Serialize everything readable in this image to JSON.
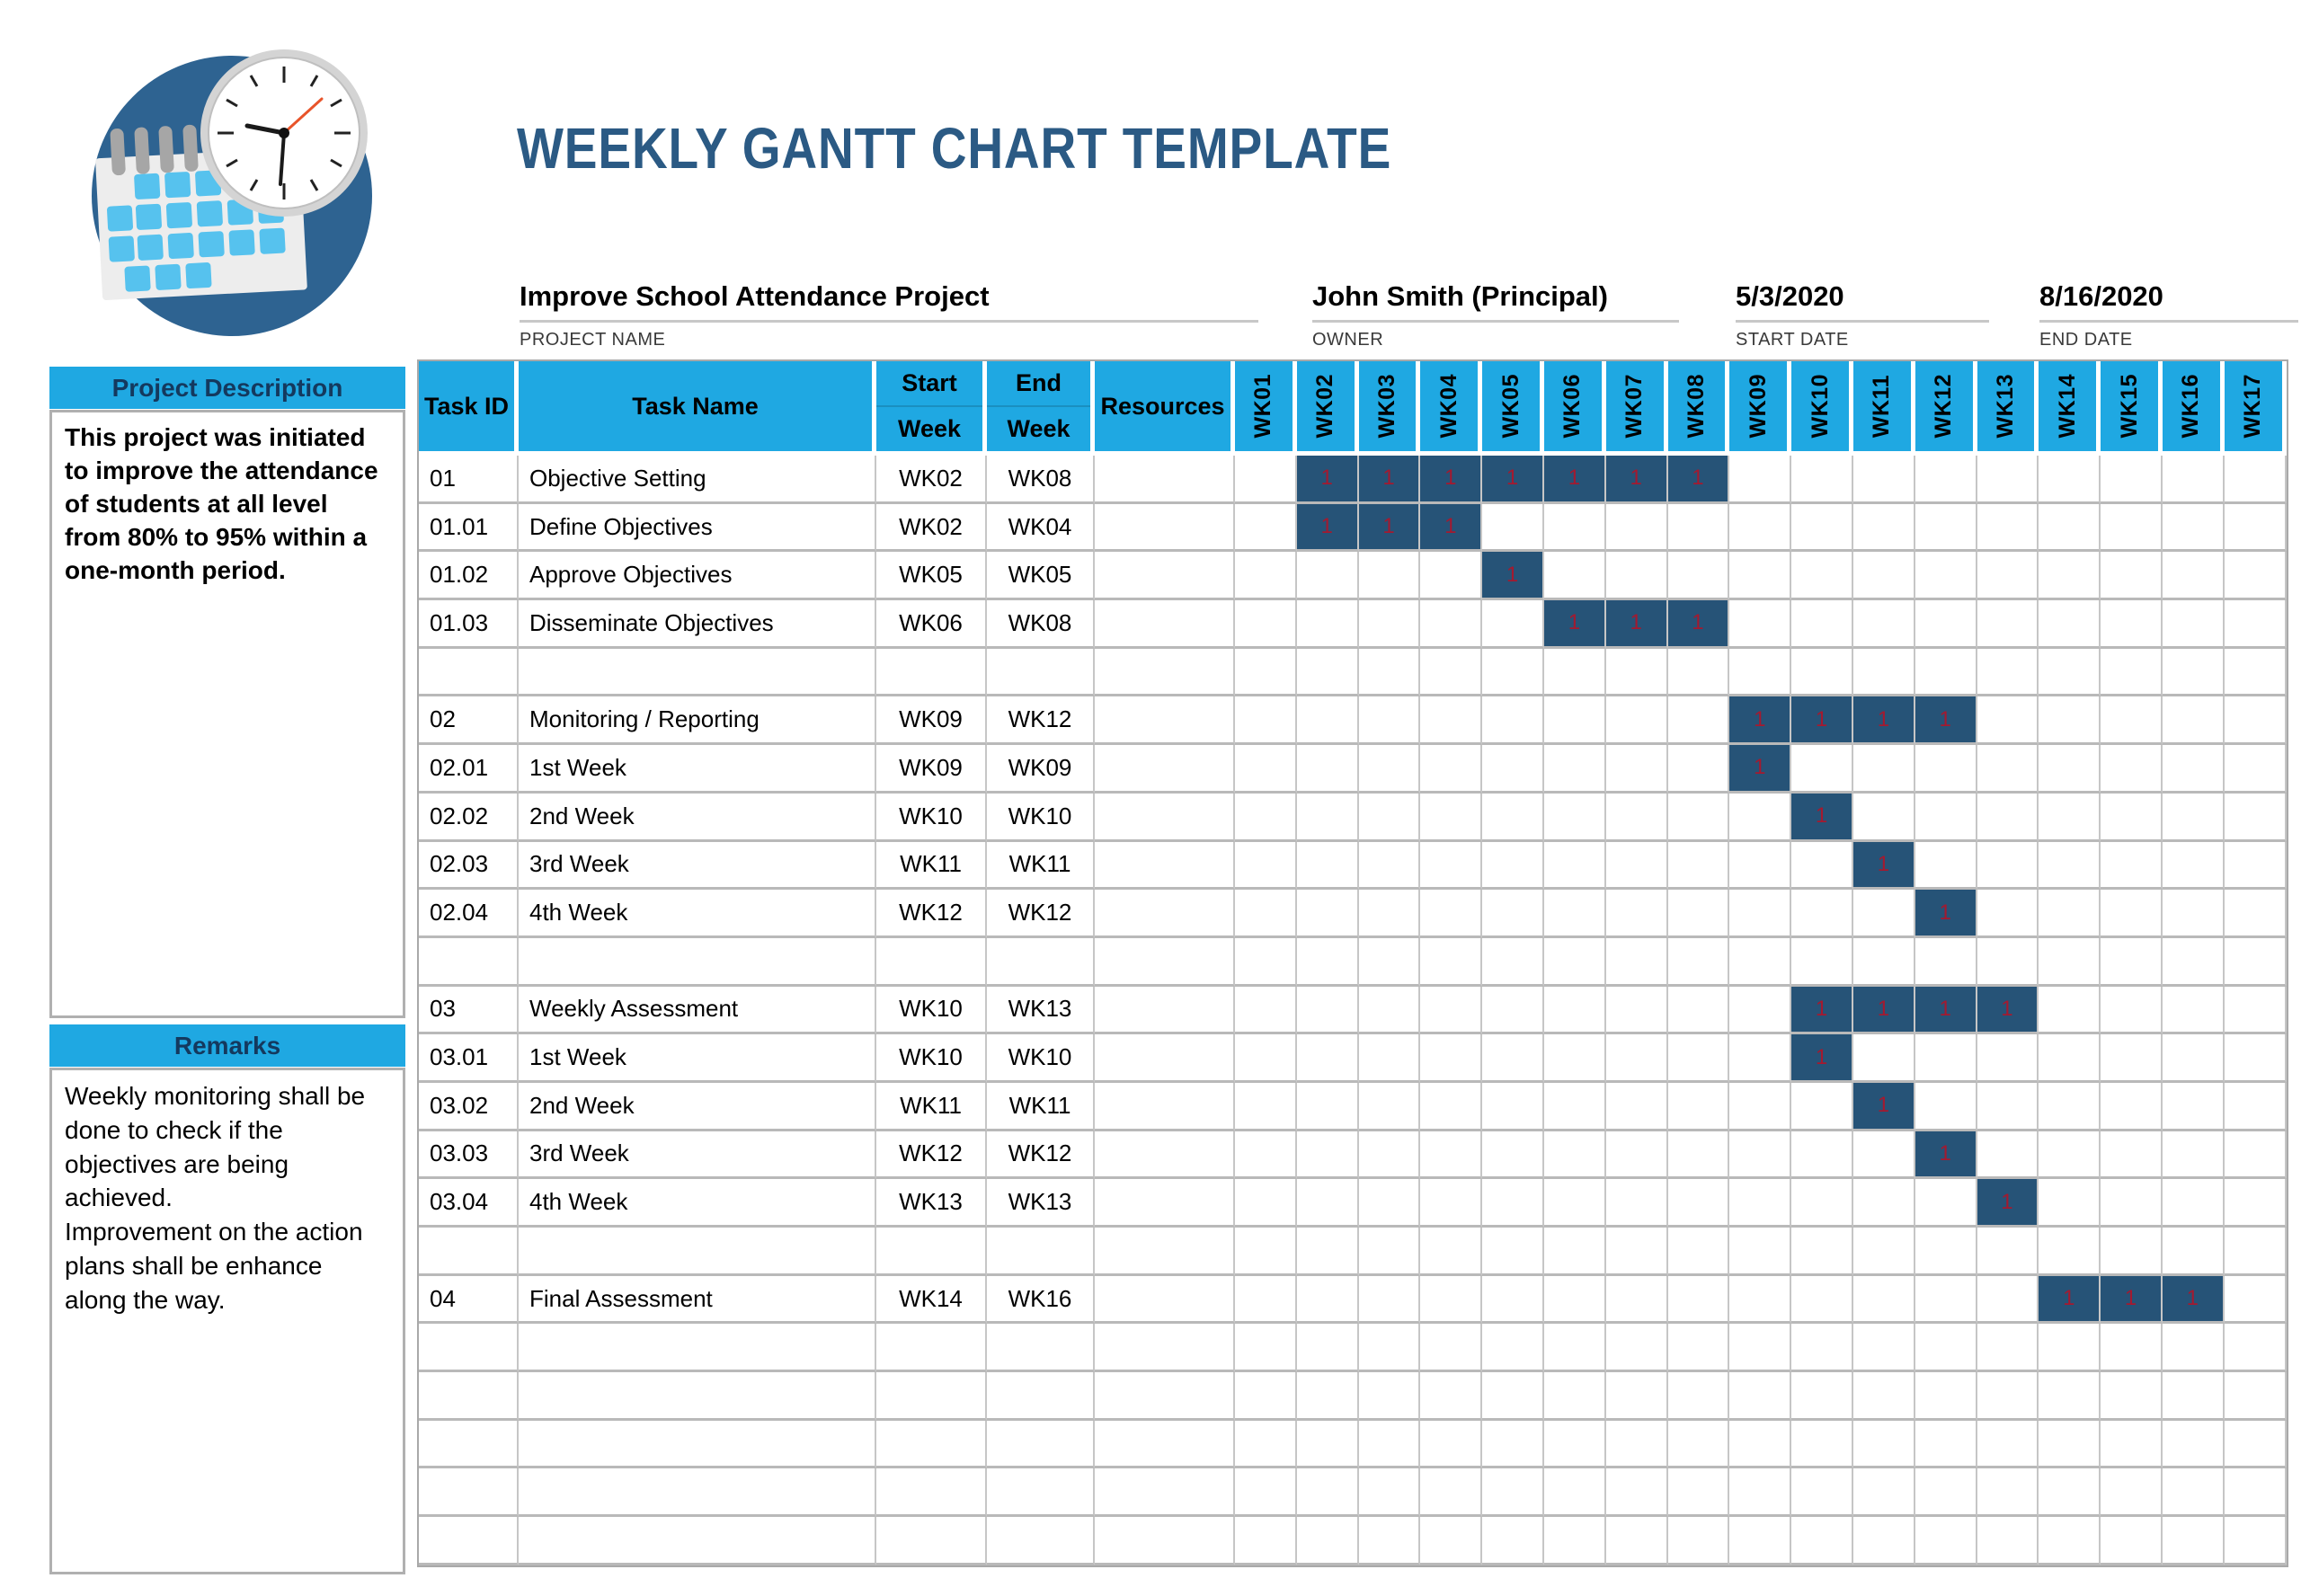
{
  "header": {
    "title": "WEEKLY GANTT CHART TEMPLATE",
    "logo_icon": "calendar-clock-icon"
  },
  "project_info": {
    "name": {
      "value": "Improve School Attendance Project",
      "label": "PROJECT NAME"
    },
    "owner": {
      "value": "John Smith (Principal)",
      "label": "OWNER"
    },
    "start": {
      "value": "5/3/2020",
      "label": "START DATE"
    },
    "end": {
      "value": "8/16/2020",
      "label": "END DATE"
    }
  },
  "sidebar": {
    "description_title": "Project Description",
    "description_body": "This project was initiated to improve the attendance of students at all level from 80% to 95% within a one-month period.",
    "remarks_title": "Remarks",
    "remarks_body": "Weekly monitoring shall be done to check if the objectives are being achieved.\nImprovement on the action plans shall be enhance along the way."
  },
  "table": {
    "headers": {
      "task_id": "Task ID",
      "task_name": "Task Name",
      "start_week_line1": "Start",
      "start_week_line2": "Week",
      "end_week_line1": "End",
      "end_week_line2": "Week",
      "resources": "Resources"
    },
    "week_columns": [
      "WK01",
      "WK02",
      "WK03",
      "WK04",
      "WK05",
      "WK06",
      "WK07",
      "WK08",
      "WK09",
      "WK10",
      "WK11",
      "WK12",
      "WK13",
      "WK14",
      "WK15",
      "WK16",
      "WK17"
    ],
    "bar_value": "1",
    "rows": [
      {
        "id": "01",
        "name": "Objective Setting",
        "start": "WK02",
        "end": "WK08",
        "resources": "",
        "bars": [
          2,
          3,
          4,
          5,
          6,
          7,
          8
        ]
      },
      {
        "id": "01.01",
        "name": "Define Objectives",
        "start": "WK02",
        "end": "WK04",
        "resources": "",
        "bars": [
          2,
          3,
          4
        ]
      },
      {
        "id": "01.02",
        "name": "Approve Objectives",
        "start": "WK05",
        "end": "WK05",
        "resources": "",
        "bars": [
          5
        ]
      },
      {
        "id": "01.03",
        "name": "Disseminate Objectives",
        "start": "WK06",
        "end": "WK08",
        "resources": "",
        "bars": [
          6,
          7,
          8
        ]
      },
      {
        "id": "",
        "name": "",
        "start": "",
        "end": "",
        "resources": "",
        "bars": []
      },
      {
        "id": "02",
        "name": "Monitoring / Reporting",
        "start": "WK09",
        "end": "WK12",
        "resources": "",
        "bars": [
          9,
          10,
          11,
          12
        ]
      },
      {
        "id": "02.01",
        "name": "1st Week",
        "start": "WK09",
        "end": "WK09",
        "resources": "",
        "bars": [
          9
        ]
      },
      {
        "id": "02.02",
        "name": "2nd Week",
        "start": "WK10",
        "end": "WK10",
        "resources": "",
        "bars": [
          10
        ]
      },
      {
        "id": "02.03",
        "name": "3rd Week",
        "start": "WK11",
        "end": "WK11",
        "resources": "",
        "bars": [
          11
        ]
      },
      {
        "id": "02.04",
        "name": "4th Week",
        "start": "WK12",
        "end": "WK12",
        "resources": "",
        "bars": [
          12
        ]
      },
      {
        "id": "",
        "name": "",
        "start": "",
        "end": "",
        "resources": "",
        "bars": []
      },
      {
        "id": "03",
        "name": "Weekly Assessment",
        "start": "WK10",
        "end": "WK13",
        "resources": "",
        "bars": [
          10,
          11,
          12,
          13
        ]
      },
      {
        "id": "03.01",
        "name": "1st Week",
        "start": "WK10",
        "end": "WK10",
        "resources": "",
        "bars": [
          10
        ]
      },
      {
        "id": "03.02",
        "name": "2nd Week",
        "start": "WK11",
        "end": "WK11",
        "resources": "",
        "bars": [
          11
        ]
      },
      {
        "id": "03.03",
        "name": "3rd Week",
        "start": "WK12",
        "end": "WK12",
        "resources": "",
        "bars": [
          12
        ]
      },
      {
        "id": "03.04",
        "name": "4th Week",
        "start": "WK13",
        "end": "WK13",
        "resources": "",
        "bars": [
          13
        ]
      },
      {
        "id": "",
        "name": "",
        "start": "",
        "end": "",
        "resources": "",
        "bars": []
      },
      {
        "id": "04",
        "name": "Final Assessment",
        "start": "WK14",
        "end": "WK16",
        "resources": "",
        "bars": [
          14,
          15,
          16
        ]
      },
      {
        "id": "",
        "name": "",
        "start": "",
        "end": "",
        "resources": "",
        "bars": []
      },
      {
        "id": "",
        "name": "",
        "start": "",
        "end": "",
        "resources": "",
        "bars": []
      },
      {
        "id": "",
        "name": "",
        "start": "",
        "end": "",
        "resources": "",
        "bars": []
      },
      {
        "id": "",
        "name": "",
        "start": "",
        "end": "",
        "resources": "",
        "bars": []
      },
      {
        "id": "",
        "name": "",
        "start": "",
        "end": "",
        "resources": "",
        "bars": []
      }
    ]
  },
  "chart_data": {
    "type": "table",
    "title": "WEEKLY GANTT CHART TEMPLATE",
    "x_categories": [
      "WK01",
      "WK02",
      "WK03",
      "WK04",
      "WK05",
      "WK06",
      "WK07",
      "WK08",
      "WK09",
      "WK10",
      "WK11",
      "WK12",
      "WK13",
      "WK14",
      "WK15",
      "WK16",
      "WK17"
    ],
    "cell_fill_value": 1,
    "tasks": [
      {
        "task_id": "01",
        "task_name": "Objective Setting",
        "start_week": "WK02",
        "end_week": "WK08",
        "weeks_marked": [
          "WK02",
          "WK03",
          "WK04",
          "WK05",
          "WK06",
          "WK07",
          "WK08"
        ]
      },
      {
        "task_id": "01.01",
        "task_name": "Define Objectives",
        "start_week": "WK02",
        "end_week": "WK04",
        "weeks_marked": [
          "WK02",
          "WK03",
          "WK04"
        ]
      },
      {
        "task_id": "01.02",
        "task_name": "Approve Objectives",
        "start_week": "WK05",
        "end_week": "WK05",
        "weeks_marked": [
          "WK05"
        ]
      },
      {
        "task_id": "01.03",
        "task_name": "Disseminate Objectives",
        "start_week": "WK06",
        "end_week": "WK08",
        "weeks_marked": [
          "WK06",
          "WK07",
          "WK08"
        ]
      },
      {
        "task_id": "02",
        "task_name": "Monitoring / Reporting",
        "start_week": "WK09",
        "end_week": "WK12",
        "weeks_marked": [
          "WK09",
          "WK10",
          "WK11",
          "WK12"
        ]
      },
      {
        "task_id": "02.01",
        "task_name": "1st Week",
        "start_week": "WK09",
        "end_week": "WK09",
        "weeks_marked": [
          "WK09"
        ]
      },
      {
        "task_id": "02.02",
        "task_name": "2nd Week",
        "start_week": "WK10",
        "end_week": "WK10",
        "weeks_marked": [
          "WK10"
        ]
      },
      {
        "task_id": "02.03",
        "task_name": "3rd Week",
        "start_week": "WK11",
        "end_week": "WK11",
        "weeks_marked": [
          "WK11"
        ]
      },
      {
        "task_id": "02.04",
        "task_name": "4th Week",
        "start_week": "WK12",
        "end_week": "WK12",
        "weeks_marked": [
          "WK12"
        ]
      },
      {
        "task_id": "03",
        "task_name": "Weekly Assessment",
        "start_week": "WK10",
        "end_week": "WK13",
        "weeks_marked": [
          "WK10",
          "WK11",
          "WK12",
          "WK13"
        ]
      },
      {
        "task_id": "03.01",
        "task_name": "1st Week",
        "start_week": "WK10",
        "end_week": "WK10",
        "weeks_marked": [
          "WK10"
        ]
      },
      {
        "task_id": "03.02",
        "task_name": "2nd Week",
        "start_week": "WK11",
        "end_week": "WK11",
        "weeks_marked": [
          "WK11"
        ]
      },
      {
        "task_id": "03.03",
        "task_name": "3rd Week",
        "start_week": "WK12",
        "end_week": "WK12",
        "weeks_marked": [
          "WK12"
        ]
      },
      {
        "task_id": "03.04",
        "task_name": "4th Week",
        "start_week": "WK13",
        "end_week": "WK13",
        "weeks_marked": [
          "WK13"
        ]
      },
      {
        "task_id": "04",
        "task_name": "Final Assessment",
        "start_week": "WK14",
        "end_week": "WK16",
        "weeks_marked": [
          "WK14",
          "WK15",
          "WK16"
        ]
      }
    ]
  },
  "colors": {
    "accent": "#1FA8E2",
    "gantt_bar": "#265377",
    "bar_mark_red": "#A31A30",
    "title_navy": "#2B5A84",
    "grid_vertical": "#C6C6C6",
    "grid_horizontal": "#B9B9B9",
    "table_frame": "#A9A9A9"
  }
}
